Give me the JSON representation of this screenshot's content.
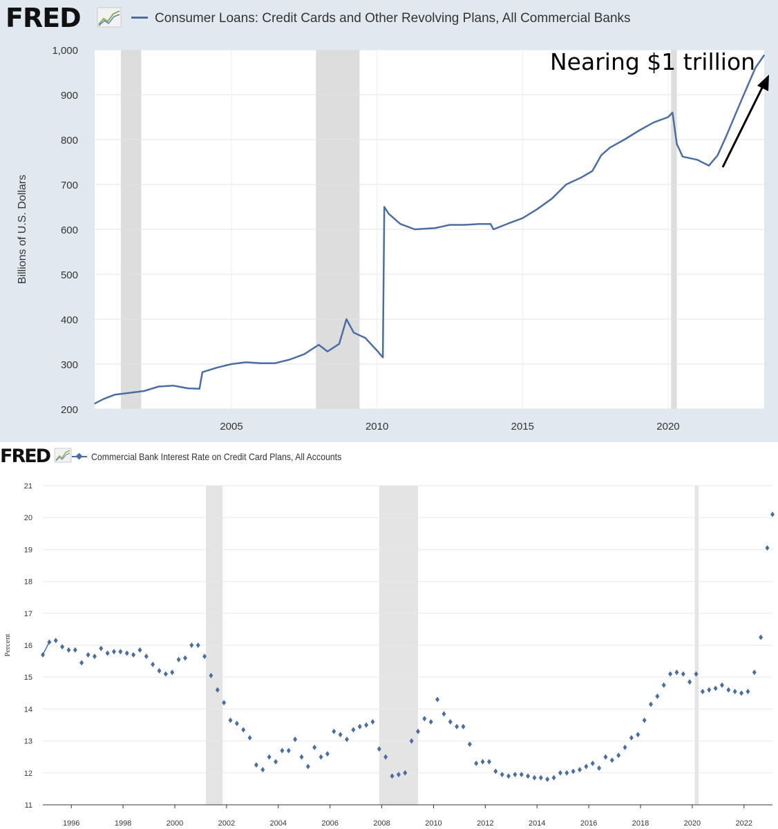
{
  "top_chart": {
    "logo": "FRED",
    "legend_title": "Consumer Loans: Credit Cards and Other Revolving Plans, All Commercial Banks",
    "annotation": "Nearing $1 trillion",
    "colors": {
      "line": "#4c6d9f",
      "panel_bg": "#e1e9f0",
      "recession": "#dddddd"
    }
  },
  "bottom_chart": {
    "logo": "FRED",
    "legend_title": "Commercial Bank Interest Rate on Credit Card Plans, All Accounts",
    "colors": {
      "marker": "#4c6d9f",
      "recession": "#e4e4e4"
    }
  },
  "chart_data": [
    {
      "type": "line",
      "title": "Consumer Loans: Credit Cards and Other Revolving Plans, All Commercial Banks",
      "xlabel": "",
      "ylabel": "Billions of U.S. Dollars",
      "xlim": [
        2000.3,
        2023.3
      ],
      "ylim": [
        200,
        1000
      ],
      "x_ticks": [
        2005,
        2010,
        2015,
        2020
      ],
      "y_ticks": [
        200,
        300,
        400,
        500,
        600,
        700,
        800,
        900,
        1000
      ],
      "y_tick_labels": [
        "200",
        "300",
        "400",
        "500",
        "600",
        "700",
        "800",
        "900",
        "1,000"
      ],
      "grid": true,
      "recessions": [
        [
          2001.2,
          2001.9
        ],
        [
          2007.9,
          2009.4
        ],
        [
          2020.1,
          2020.3
        ]
      ],
      "series": [
        {
          "name": "Consumer Loans: Credit Cards and Other Revolving Plans",
          "x": [
            2000.3,
            2000.6,
            2001.0,
            2001.5,
            2002.0,
            2002.5,
            2003.0,
            2003.5,
            2003.9,
            2004.0,
            2004.5,
            2005.0,
            2005.5,
            2006.0,
            2006.5,
            2007.0,
            2007.5,
            2008.0,
            2008.3,
            2008.7,
            2008.95,
            2009.2,
            2009.6,
            2010.0,
            2010.2,
            2010.25,
            2010.4,
            2010.8,
            2011.3,
            2012.0,
            2012.5,
            2013.0,
            2013.5,
            2013.9,
            2014.0,
            2014.5,
            2015.0,
            2015.5,
            2016.0,
            2016.5,
            2017.0,
            2017.4,
            2017.7,
            2018.0,
            2018.5,
            2019.0,
            2019.5,
            2020.0,
            2020.15,
            2020.3,
            2020.5,
            2021.0,
            2021.4,
            2021.7,
            2022.0,
            2022.5,
            2023.0,
            2023.3
          ],
          "values": [
            212,
            222,
            232,
            236,
            240,
            250,
            252,
            246,
            245,
            282,
            292,
            300,
            304,
            302,
            302,
            310,
            322,
            343,
            328,
            345,
            400,
            370,
            358,
            330,
            315,
            650,
            635,
            612,
            600,
            603,
            610,
            610,
            612,
            612,
            600,
            613,
            625,
            645,
            668,
            700,
            715,
            730,
            765,
            782,
            800,
            820,
            838,
            850,
            860,
            790,
            762,
            755,
            742,
            765,
            808,
            885,
            960,
            988
          ]
        }
      ]
    },
    {
      "type": "scatter",
      "title": "Commercial Bank Interest Rate on Credit Card Plans, All Accounts",
      "xlabel": "",
      "ylabel": "Percent",
      "xlim": [
        1994.9,
        2023.1
      ],
      "ylim": [
        11,
        21
      ],
      "x_ticks": [
        1996,
        1998,
        2000,
        2002,
        2004,
        2006,
        2008,
        2010,
        2012,
        2014,
        2016,
        2018,
        2020,
        2022
      ],
      "y_ticks": [
        11,
        12,
        13,
        14,
        15,
        16,
        17,
        18,
        19,
        20,
        21
      ],
      "grid": true,
      "recessions": [
        [
          2001.2,
          2001.85
        ],
        [
          2007.9,
          2009.4
        ],
        [
          2020.1,
          2020.25
        ]
      ],
      "series": [
        {
          "name": "Commercial Bank Interest Rate on Credit Card Plans",
          "x": [
            1994.9,
            1995.15,
            1995.4,
            1995.65,
            1995.9,
            1996.15,
            1996.4,
            1996.65,
            1996.9,
            1997.15,
            1997.4,
            1997.65,
            1997.9,
            1998.15,
            1998.4,
            1998.65,
            1998.9,
            1999.15,
            1999.4,
            1999.65,
            1999.9,
            2000.15,
            2000.4,
            2000.65,
            2000.9,
            2001.15,
            2001.4,
            2001.65,
            2001.9,
            2002.15,
            2002.4,
            2002.65,
            2002.9,
            2003.15,
            2003.4,
            2003.65,
            2003.9,
            2004.15,
            2004.4,
            2004.65,
            2004.9,
            2005.15,
            2005.4,
            2005.65,
            2005.9,
            2006.15,
            2006.4,
            2006.65,
            2006.9,
            2007.15,
            2007.4,
            2007.65,
            2007.9,
            2008.15,
            2008.4,
            2008.65,
            2008.9,
            2009.15,
            2009.4,
            2009.65,
            2009.9,
            2010.15,
            2010.4,
            2010.65,
            2010.9,
            2011.15,
            2011.4,
            2011.65,
            2011.9,
            2012.15,
            2012.4,
            2012.65,
            2012.9,
            2013.15,
            2013.4,
            2013.65,
            2013.9,
            2014.15,
            2014.4,
            2014.65,
            2014.9,
            2015.15,
            2015.4,
            2015.65,
            2015.9,
            2016.15,
            2016.4,
            2016.65,
            2016.9,
            2017.15,
            2017.4,
            2017.65,
            2017.9,
            2018.15,
            2018.4,
            2018.65,
            2018.9,
            2019.15,
            2019.4,
            2019.65,
            2019.9,
            2020.15,
            2020.4,
            2020.65,
            2020.9,
            2021.15,
            2021.4,
            2021.65,
            2021.9,
            2022.15,
            2022.4,
            2022.65,
            2022.9,
            2023.1
          ],
          "values": [
            15.7,
            16.1,
            16.15,
            15.95,
            15.85,
            15.85,
            15.45,
            15.7,
            15.65,
            15.9,
            15.75,
            15.8,
            15.8,
            15.75,
            15.7,
            15.85,
            15.65,
            15.4,
            15.2,
            15.1,
            15.15,
            15.55,
            15.6,
            16.0,
            16.0,
            15.65,
            15.05,
            14.6,
            14.2,
            13.65,
            13.55,
            13.35,
            13.1,
            12.25,
            12.1,
            12.5,
            12.35,
            12.7,
            12.7,
            13.05,
            12.5,
            12.2,
            12.8,
            12.5,
            12.6,
            13.3,
            13.2,
            13.05,
            13.35,
            13.45,
            13.5,
            13.6,
            12.75,
            12.5,
            11.9,
            11.95,
            12.0,
            13.0,
            13.3,
            13.7,
            13.6,
            14.3,
            13.85,
            13.6,
            13.45,
            13.45,
            12.9,
            12.3,
            12.35,
            12.35,
            12.05,
            11.95,
            11.9,
            11.95,
            11.95,
            11.9,
            11.85,
            11.85,
            11.8,
            11.85,
            12.0,
            12.0,
            12.05,
            12.1,
            12.2,
            12.3,
            12.15,
            12.5,
            12.4,
            12.55,
            12.8,
            13.1,
            13.2,
            13.65,
            14.15,
            14.4,
            14.75,
            15.1,
            15.15,
            15.1,
            14.85,
            15.1,
            14.55,
            14.6,
            14.65,
            14.75,
            14.6,
            14.55,
            14.5,
            14.55,
            15.15,
            16.25,
            19.05,
            20.1
          ]
        }
      ]
    }
  ]
}
